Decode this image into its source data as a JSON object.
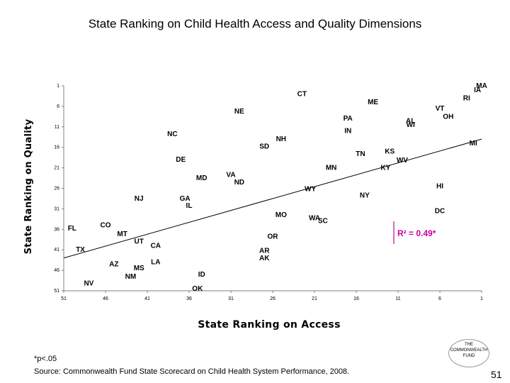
{
  "title": "State Ranking on Child Health Access and Quality Dimensions",
  "footnote": "*p<.05",
  "source": "Source: Commonwealth Fund State Scorecard on Child Health System Performance, 2008.",
  "logo": {
    "line1": "THE",
    "line2": "COMMONWEALTH",
    "line3": "FUND"
  },
  "page_number": "51",
  "colors": {
    "r2": "#cc0099",
    "axis": "#808080",
    "points": "#000000"
  },
  "chart_data": {
    "type": "scatter",
    "title": "State Ranking on Child Health Access and Quality Dimensions",
    "xlabel": "State Ranking on Access",
    "ylabel": "State Ranking on Quality",
    "x_reversed": true,
    "y_reversed": true,
    "xlim": [
      51,
      1
    ],
    "ylim": [
      51,
      1
    ],
    "x_ticks": [
      "51",
      "46",
      "41",
      "36",
      "31",
      "26",
      "21",
      "16",
      "11",
      "6",
      "1"
    ],
    "y_ticks": [
      "1",
      "6",
      "11",
      "16",
      "21",
      "26",
      "31",
      "36",
      "41",
      "46",
      "51"
    ],
    "annotation": "R² = 0.49*",
    "trendline": {
      "x": [
        51,
        1
      ],
      "y": [
        43,
        14
      ]
    },
    "points": [
      {
        "label": "MA",
        "x": 1,
        "y": 1
      },
      {
        "label": "IA",
        "x": 1.5,
        "y": 2
      },
      {
        "label": "CT",
        "x": 22.5,
        "y": 3
      },
      {
        "label": "RI",
        "x": 2.8,
        "y": 4
      },
      {
        "label": "ME",
        "x": 14,
        "y": 5
      },
      {
        "label": "VT",
        "x": 6,
        "y": 6.5
      },
      {
        "label": "NE",
        "x": 30,
        "y": 7.2
      },
      {
        "label": "OH",
        "x": 5,
        "y": 8.5
      },
      {
        "label": "PA",
        "x": 17,
        "y": 9
      },
      {
        "label": "AL",
        "x": 9.5,
        "y": 9.6
      },
      {
        "label": "WI",
        "x": 9.5,
        "y": 10.5
      },
      {
        "label": "IN",
        "x": 17,
        "y": 12
      },
      {
        "label": "NC",
        "x": 38,
        "y": 12.8
      },
      {
        "label": "NH",
        "x": 25,
        "y": 14
      },
      {
        "label": "MI",
        "x": 2,
        "y": 15
      },
      {
        "label": "SD",
        "x": 27,
        "y": 15.8
      },
      {
        "label": "KS",
        "x": 12,
        "y": 17
      },
      {
        "label": "TN",
        "x": 15.5,
        "y": 17.6
      },
      {
        "label": "DE",
        "x": 37,
        "y": 19
      },
      {
        "label": "WV",
        "x": 10.5,
        "y": 19.2
      },
      {
        "label": "KY",
        "x": 12.5,
        "y": 21
      },
      {
        "label": "MN",
        "x": 19,
        "y": 21
      },
      {
        "label": "VA",
        "x": 31,
        "y": 22.7
      },
      {
        "label": "MD",
        "x": 34.5,
        "y": 23.5
      },
      {
        "label": "ND",
        "x": 30,
        "y": 24.5
      },
      {
        "label": "HI",
        "x": 6,
        "y": 25.5
      },
      {
        "label": "WY",
        "x": 21.5,
        "y": 26.2
      },
      {
        "label": "NY",
        "x": 15,
        "y": 27.7
      },
      {
        "label": "NJ",
        "x": 42,
        "y": 28.5
      },
      {
        "label": "GA",
        "x": 36.5,
        "y": 28.5
      },
      {
        "label": "IL",
        "x": 36,
        "y": 30.2
      },
      {
        "label": "DC",
        "x": 6,
        "y": 31.5
      },
      {
        "label": "MO",
        "x": 25,
        "y": 32.5
      },
      {
        "label": "WA",
        "x": 21,
        "y": 33.3
      },
      {
        "label": "SC",
        "x": 20,
        "y": 34
      },
      {
        "label": "CO",
        "x": 46,
        "y": 35
      },
      {
        "label": "FL",
        "x": 50,
        "y": 35.8
      },
      {
        "label": "MT",
        "x": 44,
        "y": 37.2
      },
      {
        "label": "OR",
        "x": 26,
        "y": 37.8
      },
      {
        "label": "UT",
        "x": 42,
        "y": 39
      },
      {
        "label": "CA",
        "x": 40,
        "y": 40
      },
      {
        "label": "TX",
        "x": 49,
        "y": 41
      },
      {
        "label": "AR",
        "x": 27,
        "y": 41.2
      },
      {
        "label": "AK",
        "x": 27,
        "y": 43
      },
      {
        "label": "LA",
        "x": 40,
        "y": 44
      },
      {
        "label": "AZ",
        "x": 45,
        "y": 44.5
      },
      {
        "label": "MS",
        "x": 42,
        "y": 45.5
      },
      {
        "label": "ID",
        "x": 34.5,
        "y": 47
      },
      {
        "label": "NM",
        "x": 43,
        "y": 47.5
      },
      {
        "label": "NV",
        "x": 48,
        "y": 49.2
      },
      {
        "label": "OK",
        "x": 35,
        "y": 50.5
      }
    ]
  }
}
